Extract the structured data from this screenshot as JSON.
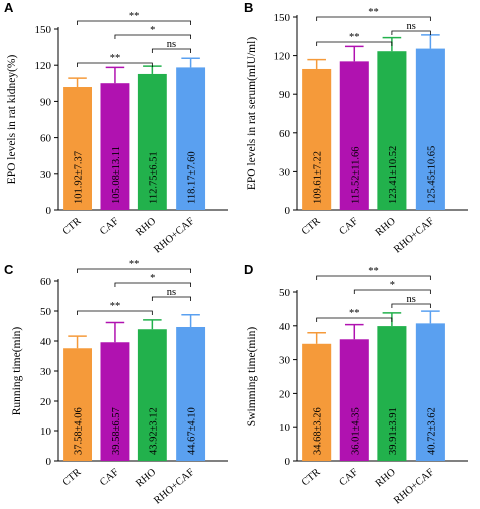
{
  "panels": [
    {
      "letter": "A",
      "ylabel": "EPO levels in rat kidney(%)",
      "ylim": [
        0,
        150
      ],
      "yticks": [
        0,
        30,
        60,
        90,
        120,
        150
      ],
      "categories": [
        "CTR",
        "CAF",
        "RHO",
        "RHO+CAF"
      ],
      "values": [
        101.92,
        105.08,
        112.75,
        118.17
      ],
      "errors": [
        7.37,
        13.11,
        6.51,
        7.6
      ],
      "value_labels": [
        "101.92±7.37",
        "105.08±13.11",
        "112.75±6.51",
        "118.17±7.60"
      ],
      "brackets": [
        {
          "from": 0,
          "to": 3,
          "label": "**"
        },
        {
          "from": 1,
          "to": 3,
          "label": "*"
        },
        {
          "from": 2,
          "to": 3,
          "label": "ns"
        },
        {
          "from": 0,
          "to": 2,
          "label": "**"
        }
      ]
    },
    {
      "letter": "B",
      "ylabel": "EPO levels in rat serum(mIU/ml)",
      "ylim": [
        0,
        150
      ],
      "yticks": [
        0,
        30,
        60,
        90,
        120,
        150
      ],
      "categories": [
        "CTR",
        "CAF",
        "RHO",
        "RHO+CAF"
      ],
      "values": [
        109.61,
        115.52,
        123.41,
        125.45
      ],
      "errors": [
        7.22,
        11.66,
        10.52,
        10.65
      ],
      "value_labels": [
        "109.61±7.22",
        "115.52±11.66",
        "123.41±10.52",
        "125.45±10.65"
      ],
      "brackets": [
        {
          "from": 0,
          "to": 3,
          "label": "**"
        },
        {
          "from": 2,
          "to": 3,
          "label": "ns"
        },
        {
          "from": 0,
          "to": 2,
          "label": "**"
        }
      ]
    },
    {
      "letter": "C",
      "ylabel": "Running time(min)",
      "ylim": [
        0,
        60
      ],
      "yticks": [
        0,
        10,
        20,
        30,
        40,
        50,
        60
      ],
      "categories": [
        "CTR",
        "CAF",
        "RHO",
        "RHO+CAF"
      ],
      "values": [
        37.58,
        39.58,
        43.92,
        44.67
      ],
      "errors": [
        4.06,
        6.57,
        3.12,
        4.1
      ],
      "value_labels": [
        "37.58±4.06",
        "39.58±6.57",
        "43.92±3.12",
        "44.67±4.10"
      ],
      "brackets": [
        {
          "from": 0,
          "to": 3,
          "label": "**"
        },
        {
          "from": 1,
          "to": 3,
          "label": "*"
        },
        {
          "from": 2,
          "to": 3,
          "label": "ns"
        },
        {
          "from": 0,
          "to": 2,
          "label": "**"
        }
      ]
    },
    {
      "letter": "D",
      "ylabel": "Swimming time(min)",
      "ylim": [
        0,
        50
      ],
      "yticks": [
        0,
        10,
        20,
        30,
        40,
        50
      ],
      "categories": [
        "CTR",
        "CAF",
        "RHO",
        "RHO+CAF"
      ],
      "values": [
        34.68,
        36.01,
        39.91,
        40.72
      ],
      "errors": [
        3.26,
        4.35,
        3.91,
        3.62
      ],
      "value_labels": [
        "34.68±3.26",
        "36.01±4.35",
        "39.91±3.91",
        "40.72±3.62"
      ],
      "brackets": [
        {
          "from": 0,
          "to": 3,
          "label": "**"
        },
        {
          "from": 1,
          "to": 3,
          "label": "*"
        },
        {
          "from": 2,
          "to": 3,
          "label": "ns"
        },
        {
          "from": 0,
          "to": 2,
          "label": "**"
        }
      ]
    }
  ],
  "bar_colors": [
    "#f59a3a",
    "#b012b0",
    "#22b14c",
    "#5aa0f0"
  ],
  "chart_data": [
    {
      "type": "bar",
      "categories": [
        "CTR",
        "CAF",
        "RHO",
        "RHO+CAF"
      ],
      "values": [
        101.92,
        105.08,
        112.75,
        118.17
      ],
      "ylabel": "EPO levels in rat kidney(%)",
      "ylim": [
        0,
        150
      ]
    },
    {
      "type": "bar",
      "categories": [
        "CTR",
        "CAF",
        "RHO",
        "RHO+CAF"
      ],
      "values": [
        109.61,
        115.52,
        123.41,
        125.45
      ],
      "ylabel": "EPO levels in rat serum(mIU/ml)",
      "ylim": [
        0,
        150
      ]
    },
    {
      "type": "bar",
      "categories": [
        "CTR",
        "CAF",
        "RHO",
        "RHO+CAF"
      ],
      "values": [
        37.58,
        39.58,
        43.92,
        44.67
      ],
      "ylabel": "Running time(min)",
      "ylim": [
        0,
        60
      ]
    },
    {
      "type": "bar",
      "categories": [
        "CTR",
        "CAF",
        "RHO",
        "RHO+CAF"
      ],
      "values": [
        34.68,
        36.01,
        39.91,
        40.72
      ],
      "ylabel": "Swimming time(min)",
      "ylim": [
        0,
        50
      ]
    }
  ]
}
